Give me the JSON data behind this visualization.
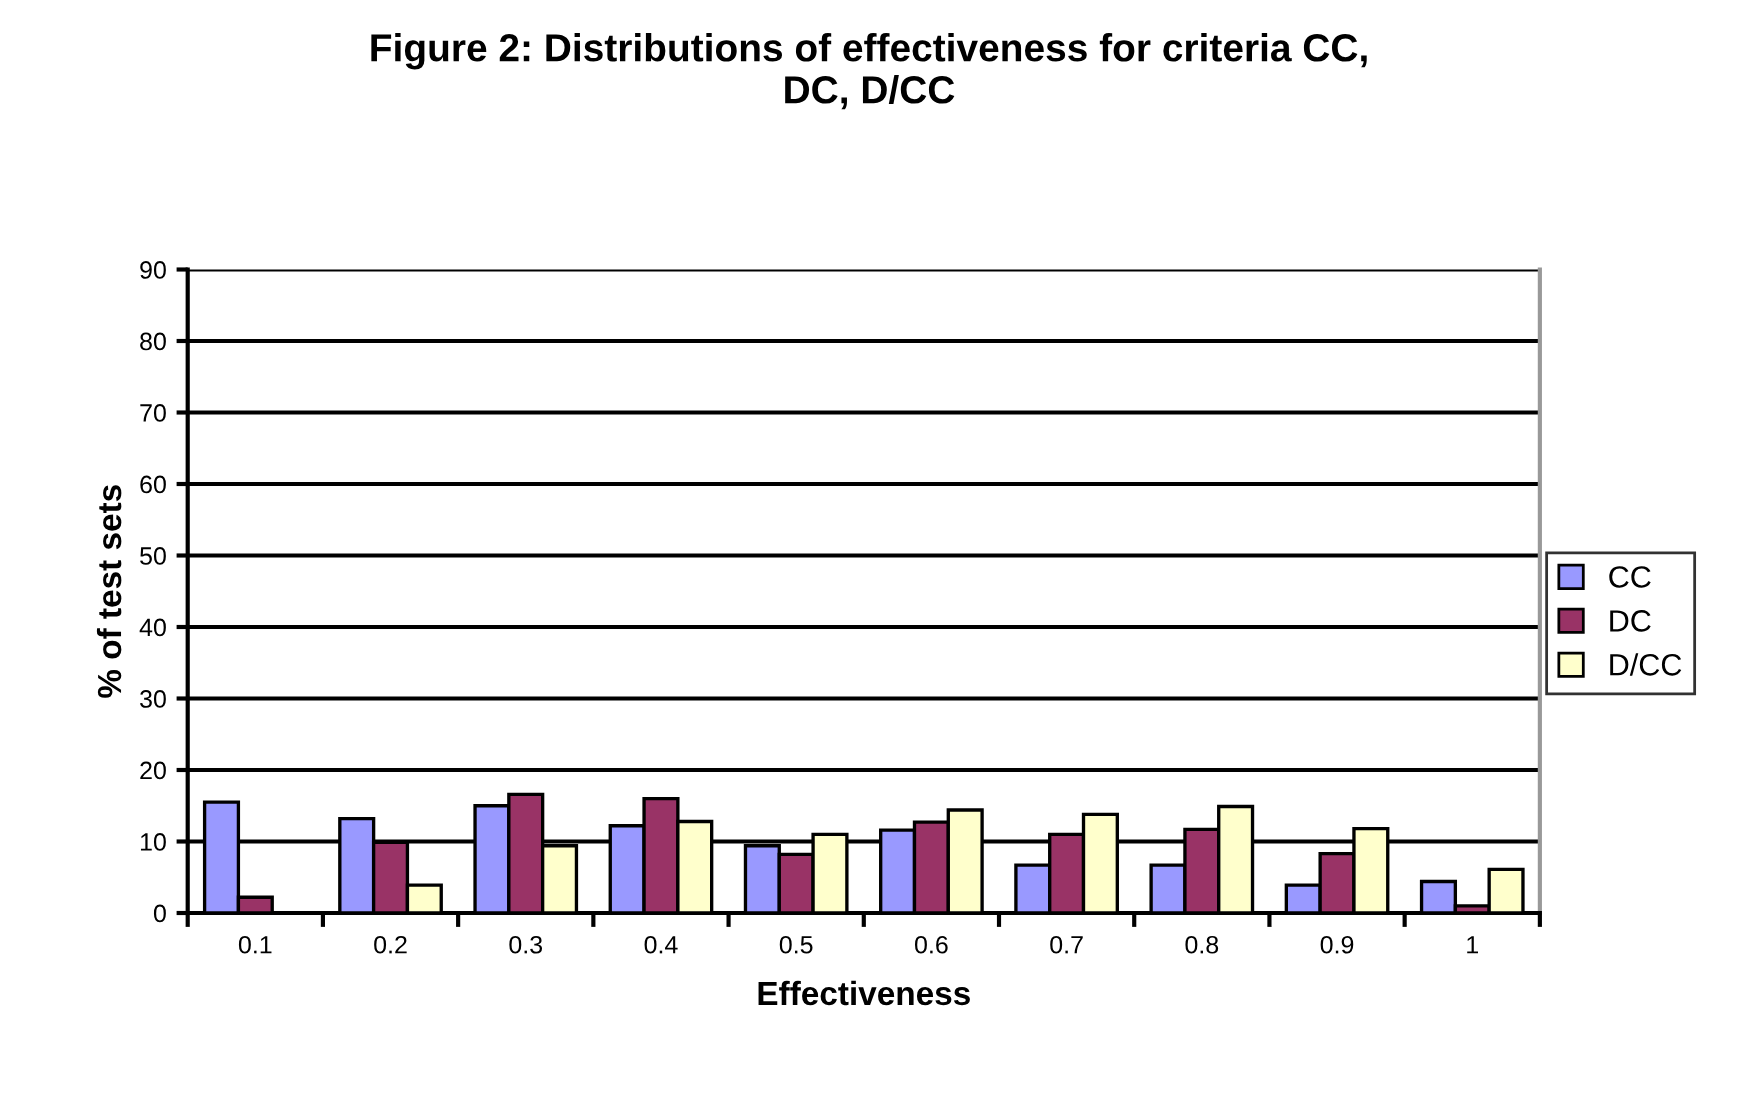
{
  "chart_data": {
    "type": "bar",
    "title": "Figure 2: Distributions of effectiveness for criteria CC,\nDC, D/CC",
    "xlabel": "Effectiveness",
    "ylabel": "% of test sets",
    "categories": [
      "0.1",
      "0.2",
      "0.3",
      "0.4",
      "0.5",
      "0.6",
      "0.7",
      "0.8",
      "0.9",
      "1"
    ],
    "series": [
      {
        "name": "CC",
        "color": "#9999ff",
        "values": [
          15.5,
          13.2,
          15.0,
          12.2,
          9.4,
          11.6,
          6.7,
          6.7,
          3.9,
          4.4
        ]
      },
      {
        "name": "DC",
        "color": "#993366",
        "values": [
          2.2,
          9.9,
          16.6,
          16.0,
          8.2,
          12.7,
          11.0,
          11.7,
          8.3,
          1.0
        ]
      },
      {
        "name": "D/CC",
        "color": "#ffffcc",
        "values": [
          null,
          3.9,
          9.4,
          12.8,
          11.0,
          14.4,
          13.8,
          14.9,
          11.8,
          6.1
        ]
      }
    ],
    "ylim": [
      0,
      90
    ],
    "yticks": [
      0,
      10,
      20,
      30,
      40,
      50,
      60,
      70,
      80,
      90
    ],
    "grid": "y",
    "legend": "right"
  }
}
